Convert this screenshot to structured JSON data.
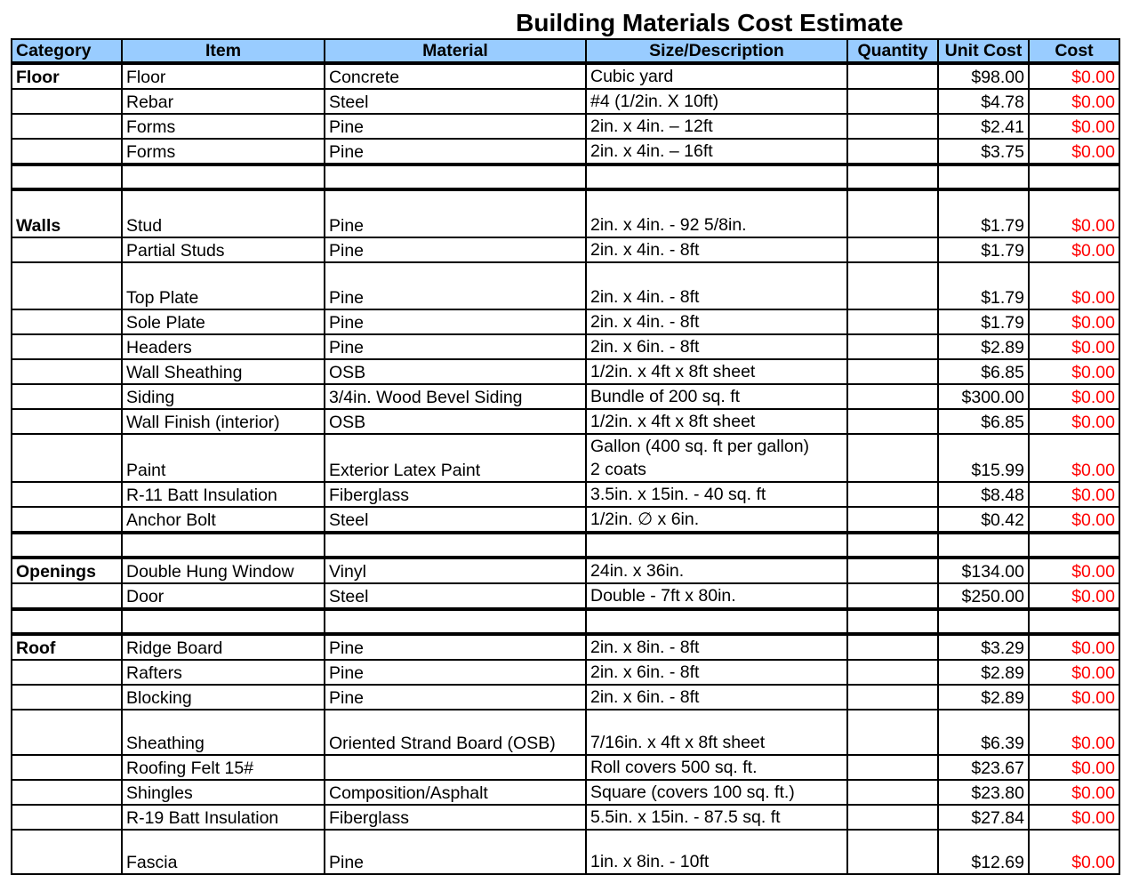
{
  "title": "Building Materials Cost Estimate",
  "columns": [
    "Category",
    "Item",
    "Material",
    "Size/Description",
    "Quantity",
    "Unit Cost",
    "Cost"
  ],
  "colors": {
    "header_bg": "#99ccff",
    "cost_text": "#ff0000"
  },
  "rows": [
    {
      "category": "Floor",
      "item": "Floor",
      "material": "Concrete",
      "size": [
        "Cubic yard"
      ],
      "quantity": "",
      "unit_cost": "$98.00",
      "cost": "$0.00"
    },
    {
      "category": "",
      "item": "Rebar",
      "material": "Steel",
      "size": [
        "#4  (1/2in. X 10ft)"
      ],
      "quantity": "",
      "unit_cost": "$4.78",
      "cost": "$0.00"
    },
    {
      "category": "",
      "item": "Forms",
      "material": "Pine",
      "size": [
        "2in. x 4in. – 12ft"
      ],
      "quantity": "",
      "unit_cost": "$2.41",
      "cost": "$0.00"
    },
    {
      "category": "",
      "item": "Forms",
      "material": "Pine",
      "size": [
        "2in. x 4in. – 16ft"
      ],
      "quantity": "",
      "unit_cost": "$3.75",
      "cost": "$0.00"
    },
    {
      "spacer": true
    },
    {
      "category": "Walls",
      "item": "Stud",
      "material": "Pine",
      "size": [
        "2in. x 4in. - 92 5/8in."
      ],
      "quantity": "",
      "unit_cost": "$1.79",
      "cost": "$0.00"
    },
    {
      "category": "",
      "item": "Partial Studs",
      "material": "Pine",
      "size": [
        "2in. x 4in. - 8ft"
      ],
      "quantity": "",
      "unit_cost": "$1.79",
      "cost": "$0.00"
    },
    {
      "category": "",
      "item": "Top Plate",
      "material": "Pine",
      "size": [
        "2in. x 4in. - 8ft"
      ],
      "quantity": "",
      "unit_cost": "$1.79",
      "cost": "$0.00"
    },
    {
      "category": "",
      "item": "Sole Plate",
      "material": "Pine",
      "size": [
        "2in. x 4in. - 8ft"
      ],
      "quantity": "",
      "unit_cost": "$1.79",
      "cost": "$0.00"
    },
    {
      "category": "",
      "item": "Headers",
      "material": "Pine",
      "size": [
        "2in. x 6in. - 8ft"
      ],
      "quantity": "",
      "unit_cost": "$2.89",
      "cost": "$0.00"
    },
    {
      "category": "",
      "item": "Wall Sheathing",
      "material": "OSB",
      "size": [
        "1/2in. x 4ft x 8ft sheet"
      ],
      "quantity": "",
      "unit_cost": "$6.85",
      "cost": "$0.00"
    },
    {
      "category": "",
      "item": "Siding",
      "material": "3/4in. Wood  Bevel Siding",
      "size": [
        "Bundle of 200 sq. ft"
      ],
      "quantity": "",
      "unit_cost": "$300.00",
      "cost": "$0.00"
    },
    {
      "category": "",
      "item": "Wall Finish (interior)",
      "material": "OSB",
      "size": [
        "1/2in. x 4ft x 8ft  sheet"
      ],
      "quantity": "",
      "unit_cost": "$6.85",
      "cost": "$0.00"
    },
    {
      "category": "",
      "item": "Paint",
      "material": "Exterior Latex Paint",
      "size": [
        "Gallon (400 sq. ft per gallon)",
        "2 coats"
      ],
      "quantity": "",
      "unit_cost": "$15.99",
      "cost": "$0.00"
    },
    {
      "category": "",
      "item": "R-11 Batt Insulation",
      "material": "Fiberglass",
      "size": [
        "3.5in. x 15in. - 40 sq. ft"
      ],
      "quantity": "",
      "unit_cost": "$8.48",
      "cost": "$0.00"
    },
    {
      "category": "",
      "item": "Anchor Bolt",
      "material": "Steel",
      "size": [
        "1/2in. ∅ x 6in."
      ],
      "quantity": "",
      "unit_cost": "$0.42",
      "cost": "$0.00"
    },
    {
      "spacer": true
    },
    {
      "category": "Openings",
      "item": "Double Hung Window",
      "material": "Vinyl",
      "size": [
        "24in. x 36in."
      ],
      "quantity": "",
      "unit_cost": "$134.00",
      "cost": "$0.00"
    },
    {
      "category": "",
      "item": "Door",
      "material": "Steel",
      "size": [
        "Double - 7ft x 80in."
      ],
      "quantity": "",
      "unit_cost": "$250.00",
      "cost": "$0.00"
    },
    {
      "spacer": true
    },
    {
      "category": "Roof",
      "item": "Ridge Board",
      "material": "Pine",
      "size": [
        "2in. x 8in. - 8ft"
      ],
      "quantity": "",
      "unit_cost": "$3.29",
      "cost": "$0.00"
    },
    {
      "category": "",
      "item": "Rafters",
      "material": "Pine",
      "size": [
        "2in. x 6in. - 8ft"
      ],
      "quantity": "",
      "unit_cost": "$2.89",
      "cost": "$0.00"
    },
    {
      "category": "",
      "item": "Blocking",
      "material": "Pine",
      "size": [
        "2in. x 6in. - 8ft"
      ],
      "quantity": "",
      "unit_cost": "$2.89",
      "cost": "$0.00"
    },
    {
      "category": "",
      "item": "Sheathing",
      "material": "Oriented Strand Board (OSB)",
      "size": [
        "7/16in. x 4ft x 8ft  sheet"
      ],
      "quantity": "",
      "unit_cost": "$6.39",
      "cost": "$0.00"
    },
    {
      "category": "",
      "item": "Roofing Felt 15#",
      "material": "",
      "size": [
        "Roll covers 500 sq. ft."
      ],
      "quantity": "",
      "unit_cost": "$23.67",
      "cost": "$0.00"
    },
    {
      "category": "",
      "item": "Shingles",
      "material": "Composition/Asphalt",
      "size": [
        "Square (covers 100 sq. ft.)"
      ],
      "quantity": "",
      "unit_cost": "$23.80",
      "cost": "$0.00"
    },
    {
      "category": "",
      "item": "R-19 Batt Insulation",
      "material": "Fiberglass",
      "size": [
        "5.5in. x 15in. - 87.5 sq. ft"
      ],
      "quantity": "",
      "unit_cost": "$27.84",
      "cost": "$0.00"
    },
    {
      "category": "",
      "item": "Fascia",
      "material": "Pine",
      "size": [
        "1in. x 8in. - 10ft"
      ],
      "quantity": "",
      "unit_cost": "$12.69",
      "cost": "$0.00"
    }
  ]
}
